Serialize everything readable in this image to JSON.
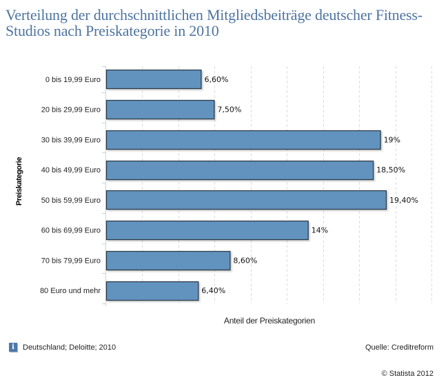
{
  "chart_data": {
    "type": "bar",
    "orientation": "horizontal",
    "title": "Verteilung der durchschnittlichen Mitgliedsbeiträge deutscher Fitness-Studios nach Preiskategorie in 2010",
    "xlabel": "Anteil der Preiskategorien",
    "ylabel": "Preiskategorie",
    "categories": [
      "0 bis 19,99 Euro",
      "20 bis 29,99 Euro",
      "30 bis 39,99 Euro",
      "40 bis 49,99 Euro",
      "50 bis 59,99 Euro",
      "60 bis 69,99 Euro",
      "70 bis 79,99 Euro",
      "80 Euro und mehr"
    ],
    "values": [
      6.6,
      7.5,
      19,
      18.5,
      19.4,
      14,
      8.6,
      6.4
    ],
    "value_labels": [
      "6,60%",
      "7,50%",
      "19%",
      "18,50%",
      "19,40%",
      "14%",
      "8,60%",
      "6,40%"
    ],
    "unit": "%",
    "xlim": [
      0,
      22.5
    ],
    "grid_step": 2.5,
    "grid": true,
    "bar_color": "#6293bf",
    "bar_border_color": "#2e3a46",
    "legend": "none"
  },
  "footer": {
    "note": "Deutschland; Deloitte; 2010",
    "info_icon": "i",
    "source": "Quelle: Creditreform",
    "copyright": "© Statista 2012"
  }
}
